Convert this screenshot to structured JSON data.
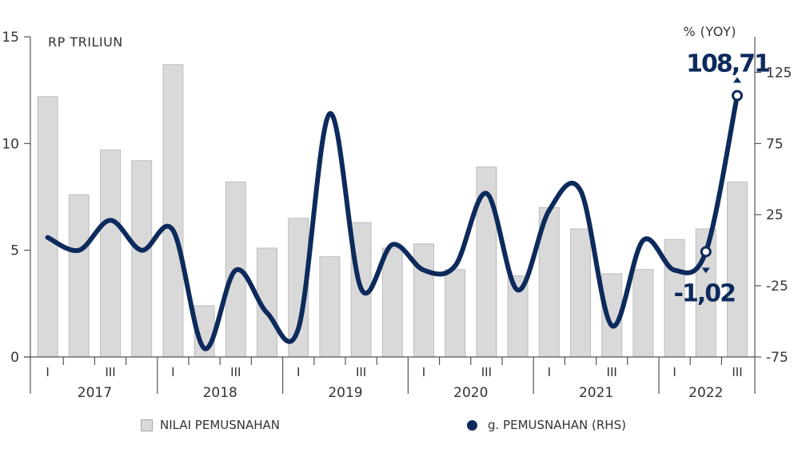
{
  "chart_data": {
    "type": "bar+line",
    "left_axis": {
      "unit_label": "RP TRILIUN",
      "ylim": [
        0,
        15
      ],
      "ticks": [
        "0",
        "5",
        "10",
        "15"
      ]
    },
    "right_axis": {
      "unit_label": "% (YOY)",
      "ylim": [
        -75,
        150
      ],
      "ticks": [
        "-75",
        "-25",
        "25",
        "75",
        "125"
      ]
    },
    "years": [
      "2017",
      "2018",
      "2019",
      "2020",
      "2021",
      "2022"
    ],
    "quarter_labels": [
      "I",
      "",
      "III",
      ""
    ],
    "quarters_per_year": [
      4,
      4,
      4,
      4,
      4,
      3
    ],
    "bar_series": {
      "name": "NILAI PEMUSNAHAN",
      "color": "#d9d9d9",
      "values": [
        12.2,
        7.6,
        9.7,
        9.2,
        13.7,
        2.4,
        8.2,
        5.1,
        6.5,
        4.7,
        6.3,
        5.1,
        5.3,
        4.1,
        8.9,
        3.8,
        7.0,
        6.0,
        3.9,
        4.1,
        5.5,
        6.0,
        8.2
      ]
    },
    "line_series": {
      "name": "g. PEMUSNAHAN (RHS)",
      "color": "#0d2a5c",
      "values": [
        9,
        0,
        21,
        0,
        14,
        -69,
        -14,
        -44,
        -55,
        96,
        -27,
        4,
        -14,
        -11,
        40,
        -28,
        28,
        42,
        -53,
        7,
        -14,
        -1.02,
        108.71
      ]
    },
    "annotations": [
      {
        "label": "108,71",
        "index": 22,
        "direction": "up"
      },
      {
        "label": "-1,02",
        "index": 21,
        "direction": "down"
      }
    ]
  }
}
